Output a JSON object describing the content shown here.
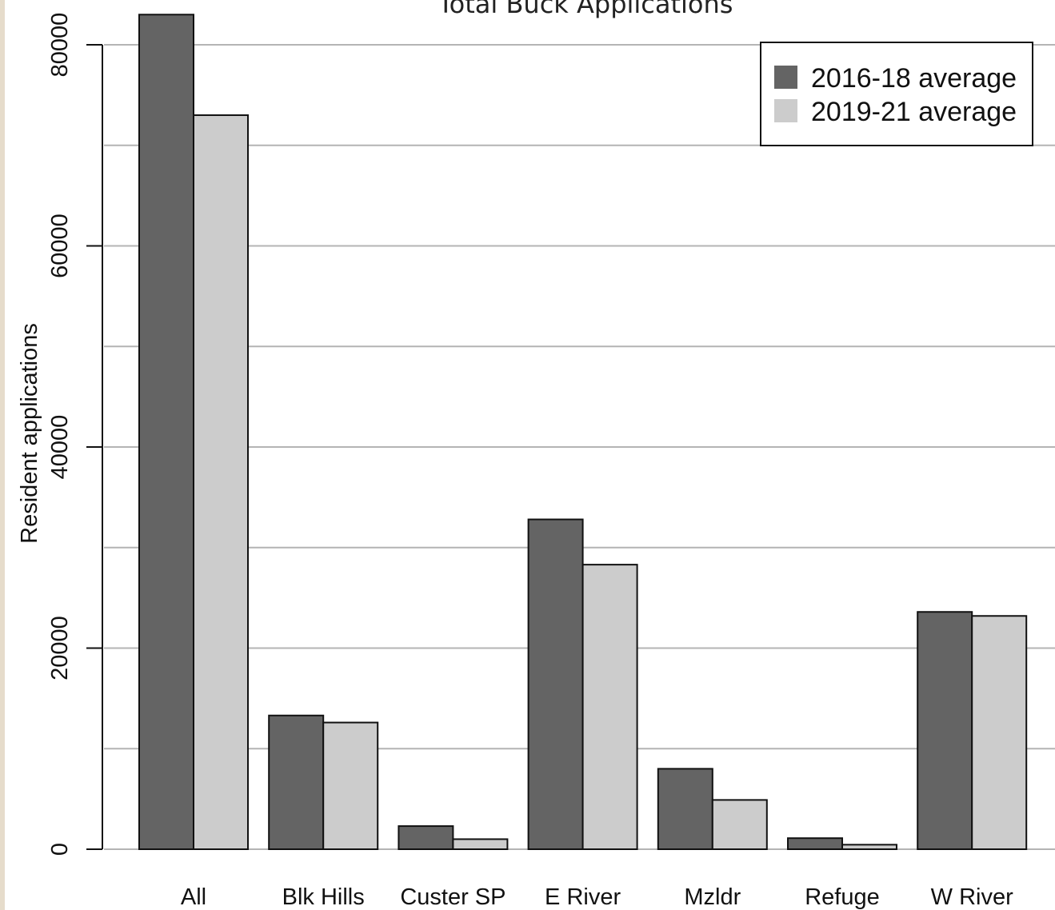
{
  "chart_data": {
    "type": "bar",
    "title": "Total Buck Applications",
    "xlabel": "",
    "ylabel": "Resident applications",
    "categories": [
      "All",
      "Blk Hills",
      "Custer SP",
      "E River",
      "Mzldr",
      "Refuge",
      "W River"
    ],
    "series": [
      {
        "name": "2016-18 average",
        "color": "#646464",
        "values": [
          83000,
          13300,
          2300,
          32800,
          8000,
          1100,
          23600
        ]
      },
      {
        "name": "2019-21 average",
        "color": "#cccccc",
        "values": [
          73000,
          12600,
          1000,
          28300,
          4900,
          450,
          23200
        ]
      }
    ],
    "ylim": [
      0,
      80000
    ],
    "yticks": [
      0,
      20000,
      40000,
      60000,
      80000
    ],
    "yticklabels": [
      "0",
      "20000",
      "40000",
      "60000",
      "80000"
    ],
    "gridlines": [
      0,
      10000,
      20000,
      30000,
      40000,
      50000,
      60000,
      70000,
      80000
    ],
    "grid": true,
    "legend_position": "top-right"
  }
}
